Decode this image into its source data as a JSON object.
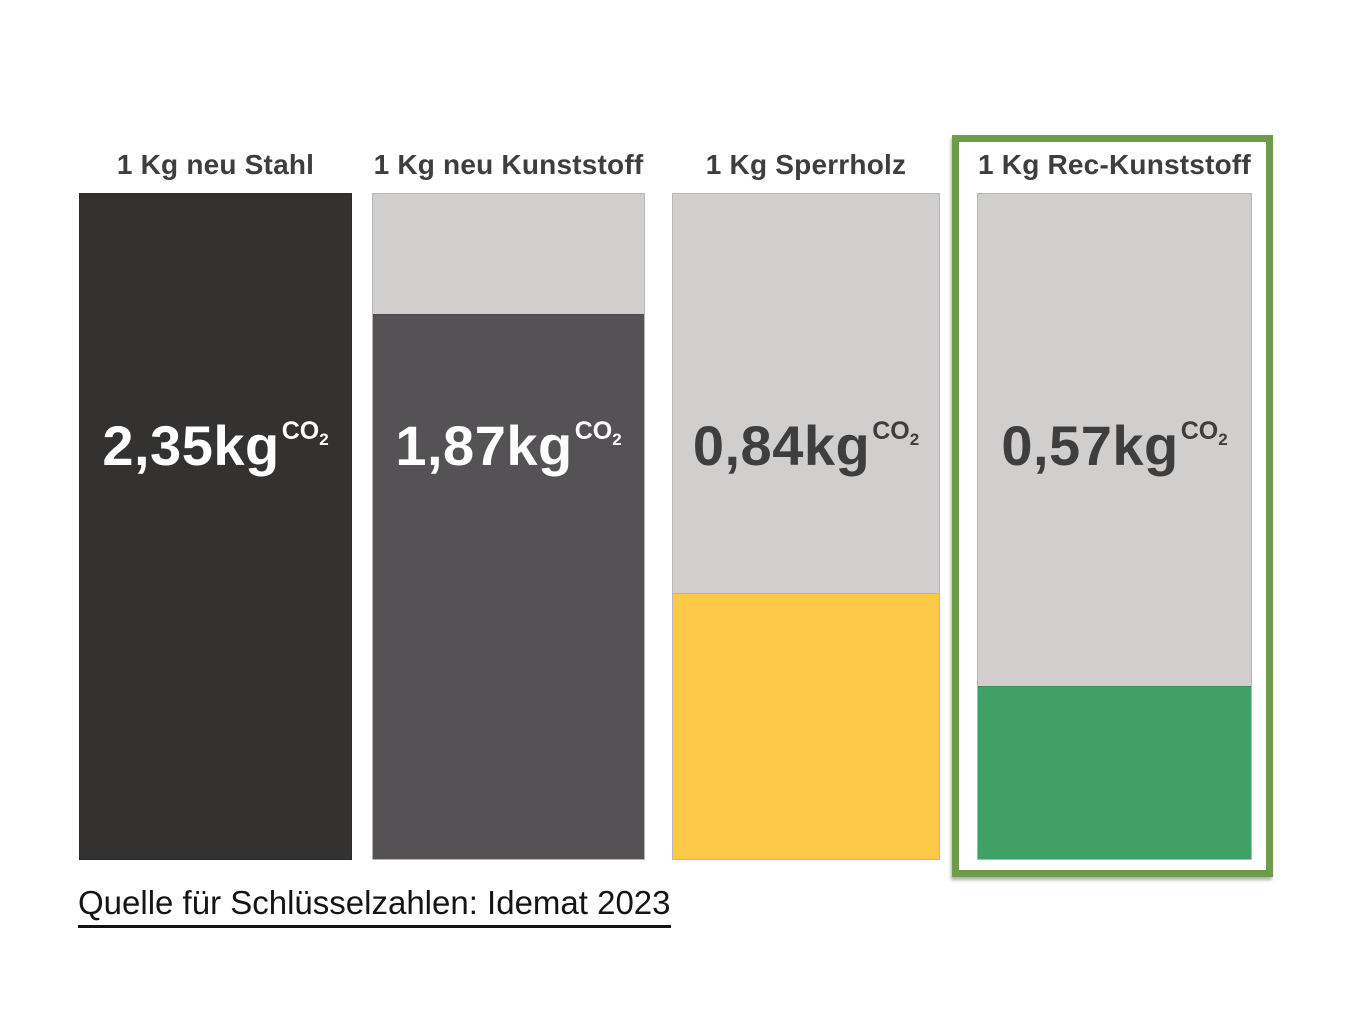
{
  "chart_data": {
    "type": "bar",
    "title": "",
    "categories": [
      "1 Kg neu Stahl",
      "1 Kg neu Kunststoff",
      "1 Kg Sperrholz",
      "1 Kg Rec-Kunststoff"
    ],
    "values": [
      2.35,
      1.87,
      0.84,
      0.57
    ],
    "value_unit": "kg CO2",
    "ylim": [
      0,
      2.35
    ],
    "grid": false,
    "legend": "none",
    "highlighted_category": "1 Kg Rec-Kunststoff",
    "source_note": "Quelle für Schlüsselzahlen: Idemat 2023"
  },
  "bars": [
    {
      "label": "1 Kg neu Stahl",
      "value": 2.35,
      "value_label": "2,35kg",
      "co2_prefix": "CO",
      "co2_sub": "2",
      "fill_percent": 100,
      "fill_color": "#343231",
      "track_color": "#343231",
      "value_text_color": "#ffffff",
      "highlighted": false
    },
    {
      "label": "1 Kg neu Kunststoff",
      "value": 1.87,
      "value_label": "1,87kg",
      "co2_prefix": "CO",
      "co2_sub": "2",
      "fill_percent": 82,
      "fill_color": "#545254",
      "track_color": "#d1cece",
      "value_text_color": "#ffffff",
      "highlighted": false
    },
    {
      "label": "1 Kg Sperrholz",
      "value": 0.84,
      "value_label": "0,84kg",
      "co2_prefix": "CO",
      "co2_sub": "2",
      "fill_percent": 40,
      "fill_color": "#fdc748",
      "track_color": "#d1cece",
      "value_text_color": "#3f3e3e",
      "highlighted": false
    },
    {
      "label": "1 Kg Rec-Kunststoff",
      "value": 0.57,
      "value_label": "0,57kg",
      "co2_prefix": "CO",
      "co2_sub": "2",
      "fill_percent": 26,
      "fill_color": "#41a066",
      "track_color": "#d1cece",
      "value_text_color": "#3f3e3e",
      "highlighted": true
    }
  ],
  "source": {
    "text": "Quelle für Schlüsselzahlen: Idemat 2023"
  },
  "colors": {
    "background": "#ffffff",
    "label_text": "#3e3e3e",
    "highlight_border": "#6f9c4b",
    "steel_dark": "#343231",
    "plastic_dark": "#545254",
    "plywood_yellow": "#fdc748",
    "recycled_green": "#41a066",
    "track_gray": "#d1cece"
  }
}
